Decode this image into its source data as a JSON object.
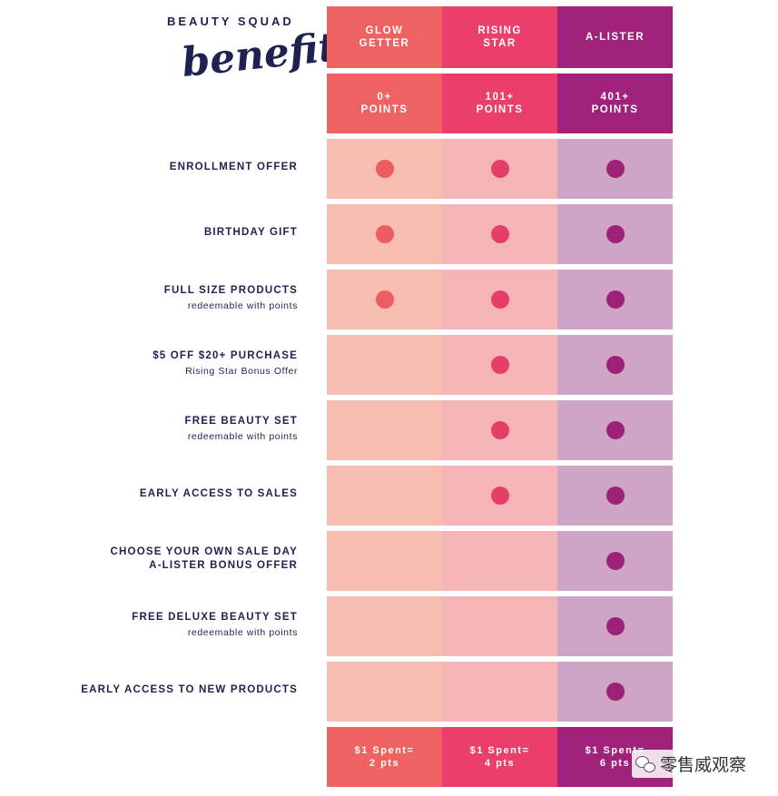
{
  "heading": {
    "small": "BEAUTY SQUAD",
    "script": "benefits"
  },
  "tiers": [
    {
      "name_line1": "GLOW",
      "name_line2": "GETTER",
      "points_line1": "0+",
      "points_line2": "POINTS",
      "earn_line1": "$1 Spent=",
      "earn_line2": "2 pts"
    },
    {
      "name_line1": "RISING",
      "name_line2": "STAR",
      "points_line1": "101+",
      "points_line2": "POINTS",
      "earn_line1": "$1 Spent=",
      "earn_line2": "4 pts"
    },
    {
      "name_line1": "A-LISTER",
      "name_line2": "",
      "points_line1": "401+",
      "points_line2": "POINTS",
      "earn_line1": "$1 Spent=",
      "earn_line2": "6 pts"
    }
  ],
  "benefits": [
    {
      "label": "ENROLLMENT OFFER",
      "label2": "",
      "sub": "",
      "tiers": [
        true,
        true,
        true
      ]
    },
    {
      "label": "BIRTHDAY GIFT",
      "label2": "",
      "sub": "",
      "tiers": [
        true,
        true,
        true
      ]
    },
    {
      "label": "FULL SIZE PRODUCTS",
      "label2": "",
      "sub": "redeemable with points",
      "tiers": [
        true,
        true,
        true
      ]
    },
    {
      "label": "$5 OFF $20+ PURCHASE",
      "label2": "",
      "sub": "Rising Star Bonus Offer",
      "tiers": [
        false,
        true,
        true
      ]
    },
    {
      "label": "FREE BEAUTY SET",
      "label2": "",
      "sub": "redeemable with points",
      "tiers": [
        false,
        true,
        true
      ]
    },
    {
      "label": "EARLY ACCESS TO SALES",
      "label2": "",
      "sub": "",
      "tiers": [
        false,
        true,
        true
      ]
    },
    {
      "label": "CHOOSE YOUR OWN SALE DAY",
      "label2": "A-LISTER BONUS OFFER",
      "sub": "",
      "tiers": [
        false,
        false,
        true
      ]
    },
    {
      "label": "FREE DELUXE BEAUTY SET",
      "label2": "",
      "sub": "redeemable with points",
      "tiers": [
        false,
        false,
        true
      ]
    },
    {
      "label": "EARLY ACCESS TO NEW PRODUCTS",
      "label2": "",
      "sub": "",
      "tiers": [
        false,
        false,
        true
      ]
    }
  ],
  "watermark": {
    "text": "零售威观察",
    "icon": "wechat-icon"
  },
  "colors": {
    "navy": "#1f2150",
    "glow_getter": "#ee6262",
    "rising_star": "#ea3f6b",
    "a_lister": "#a0227b"
  }
}
